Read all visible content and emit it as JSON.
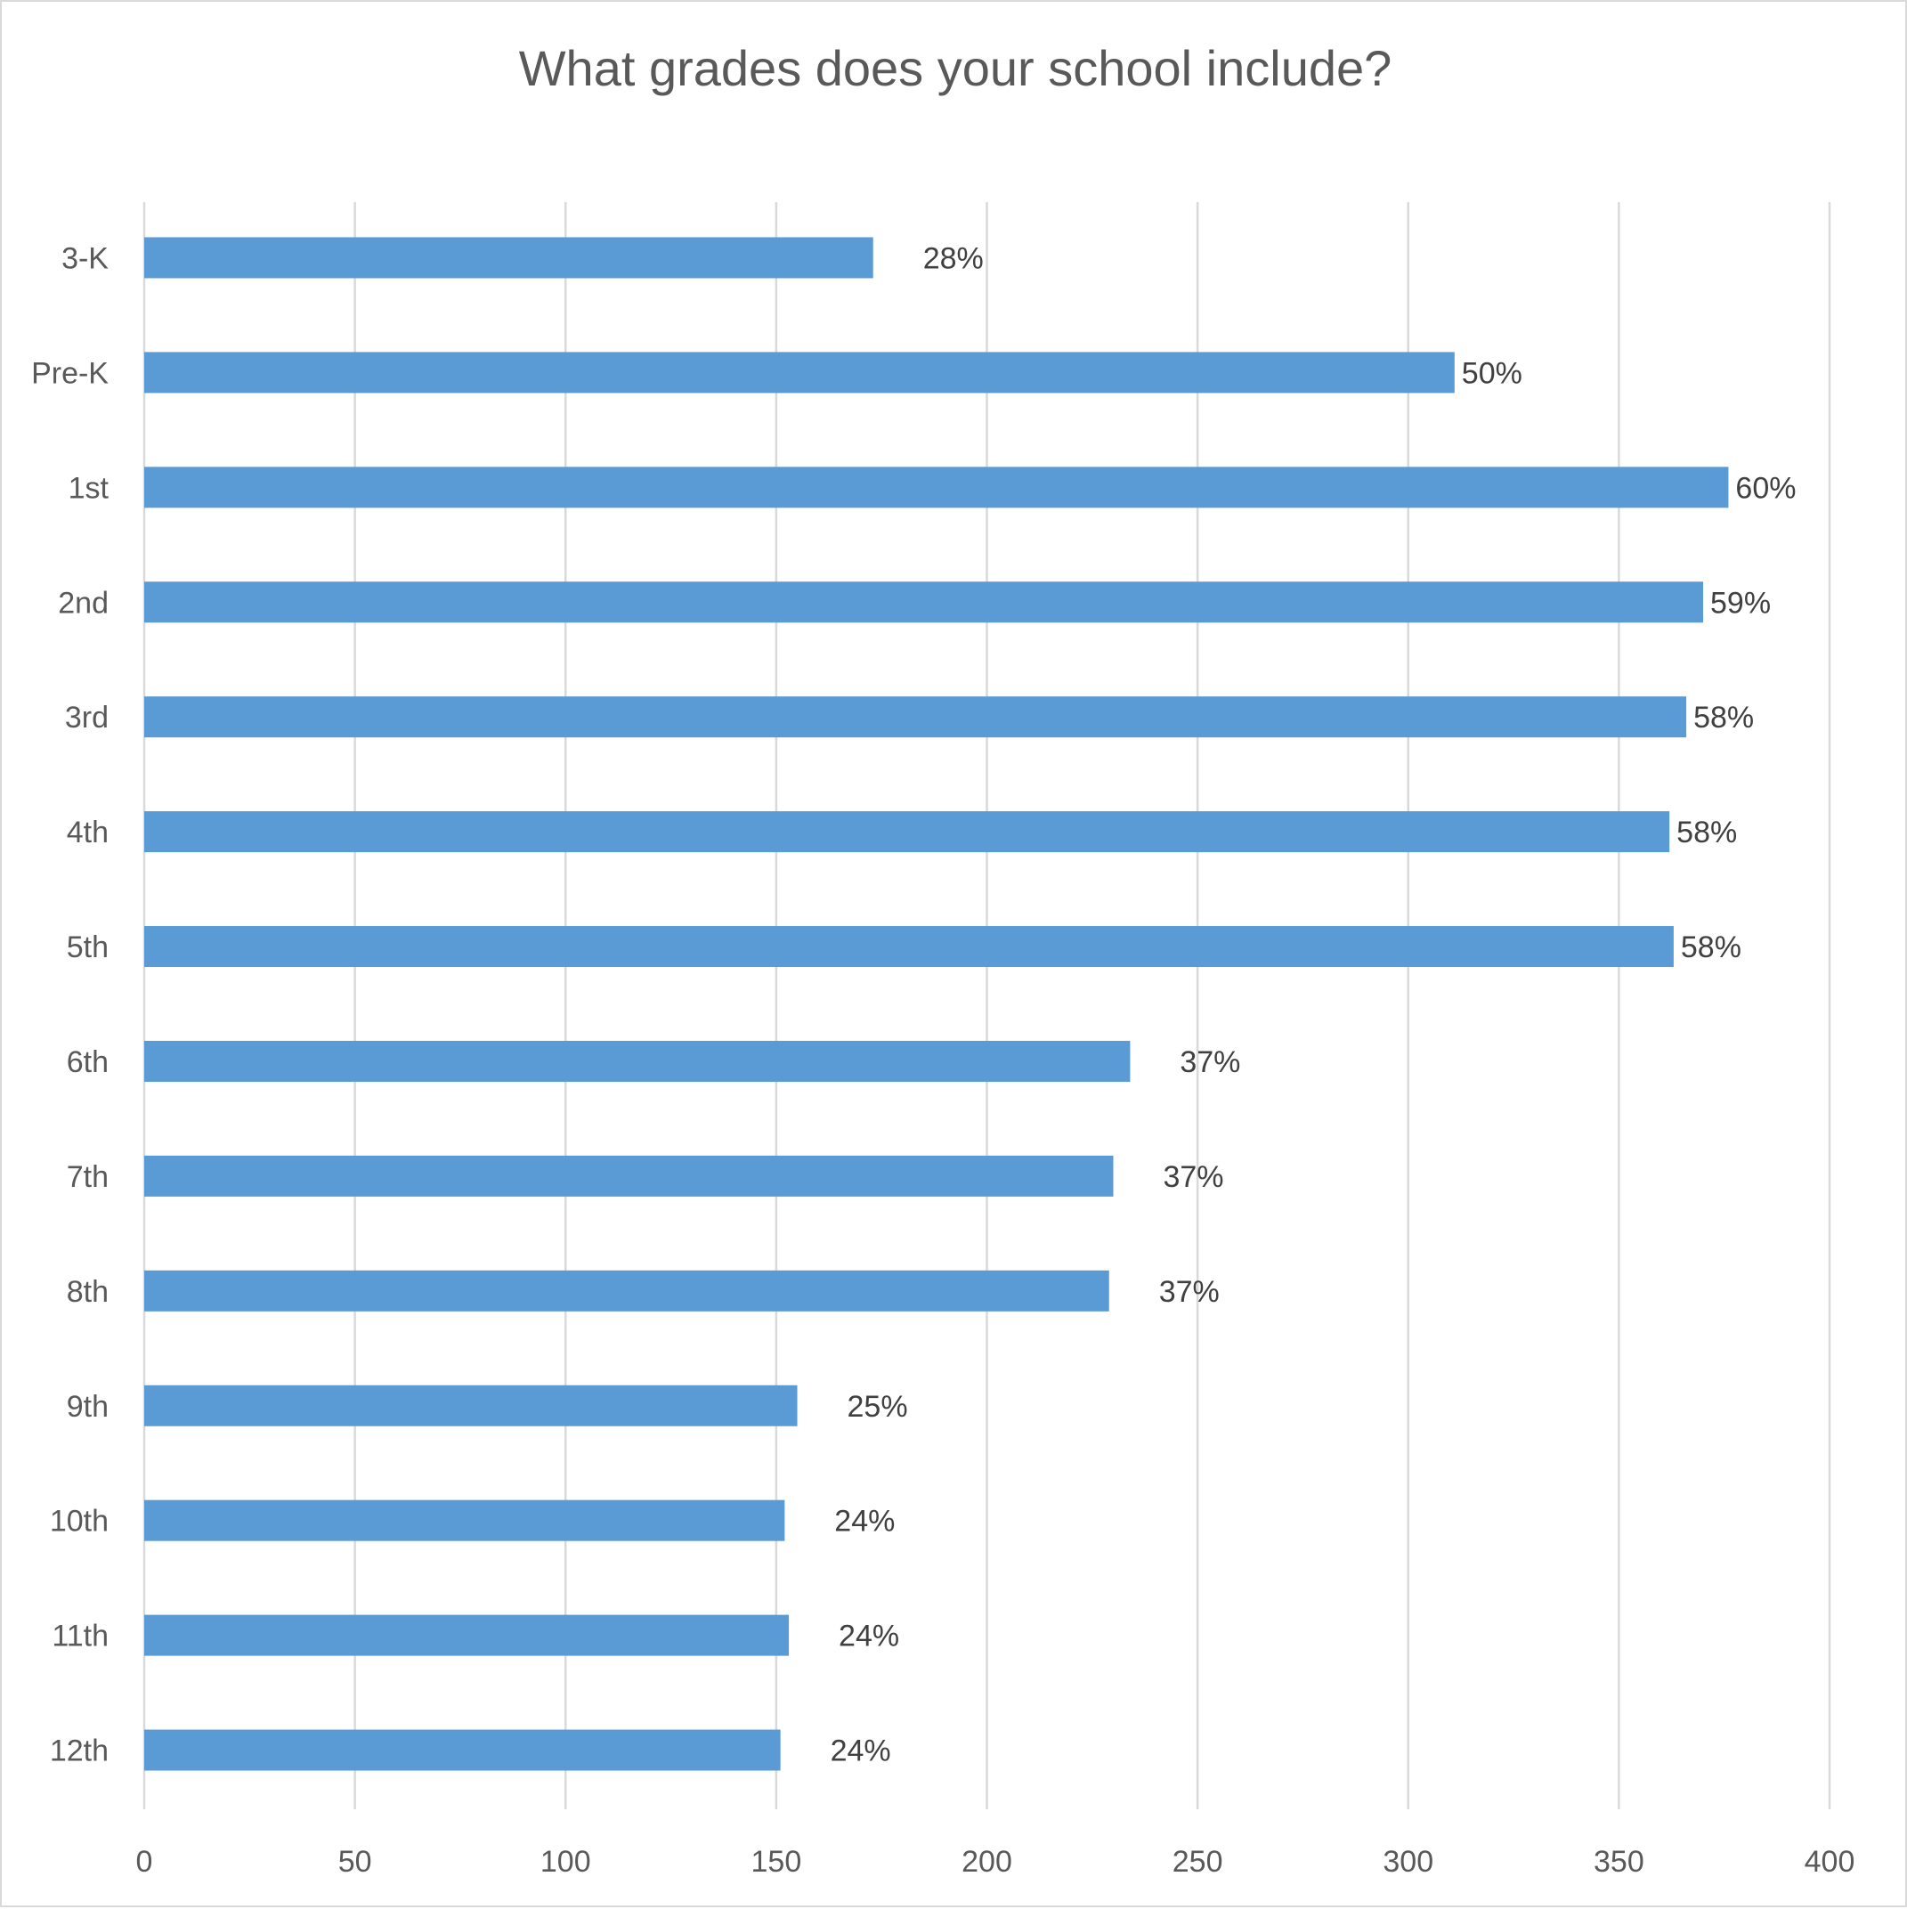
{
  "chart_data": {
    "type": "bar",
    "orientation": "horizontal",
    "title": "What grades does your school include?",
    "xlabel": "",
    "ylabel": "",
    "categories": [
      "3-K",
      "Pre-K",
      "1st",
      "2nd",
      "3rd",
      "4th",
      "5th",
      "6th",
      "7th",
      "8th",
      "9th",
      "10th",
      "11th",
      "12th"
    ],
    "values": [
      173,
      311,
      376,
      370,
      366,
      362,
      363,
      234,
      230,
      229,
      155,
      152,
      153,
      151
    ],
    "data_labels": [
      "28%",
      "50%",
      "60%",
      "59%",
      "58%",
      "58%",
      "58%",
      "37%",
      "37%",
      "37%",
      "25%",
      "24%",
      "24%",
      "24%"
    ],
    "xlim": [
      0,
      400
    ],
    "xticks": [
      "0",
      "50",
      "100",
      "150",
      "200",
      "250",
      "300",
      "350",
      "400"
    ],
    "grid": "vertical",
    "legend": "none",
    "bar_color": "#5b9bd5"
  }
}
